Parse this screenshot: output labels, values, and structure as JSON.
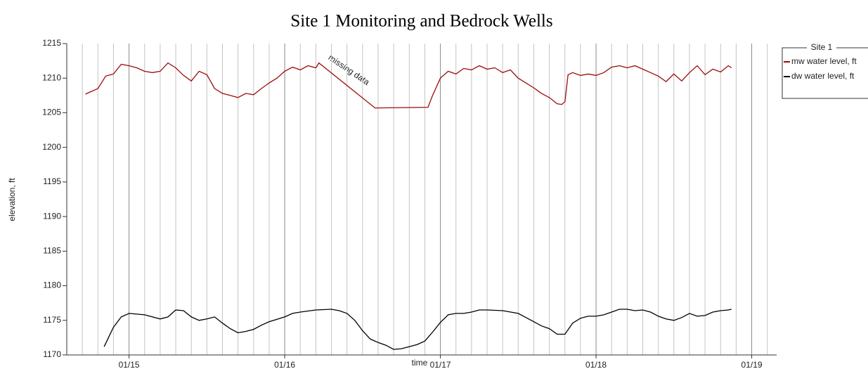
{
  "chart_data": {
    "type": "line",
    "title": "Site 1 Monitoring and Bedrock Wells",
    "xlabel": "time",
    "ylabel": "elevation, ft",
    "xlim": [
      14.6,
      19.16
    ],
    "xticks": [
      {
        "value": 15,
        "label": "01/15"
      },
      {
        "value": 16,
        "label": "01/16"
      },
      {
        "value": 17,
        "label": "01/17"
      },
      {
        "value": 18,
        "label": "01/18"
      },
      {
        "value": 19,
        "label": "01/19"
      }
    ],
    "xminorticks": [
      14.7,
      14.8,
      14.9,
      15.1,
      15.2,
      15.3,
      15.4,
      15.5,
      15.6,
      15.7,
      15.8,
      15.9,
      16.1,
      16.2,
      16.3,
      16.4,
      16.5,
      16.6,
      16.7,
      16.8,
      16.9,
      17.1,
      17.2,
      17.3,
      17.4,
      17.5,
      17.6,
      17.7,
      17.8,
      17.9,
      18.1,
      18.2,
      18.3,
      18.4,
      18.5,
      18.6,
      18.7,
      18.8,
      18.9,
      19.1
    ],
    "ylim": [
      1170,
      1215
    ],
    "yticks": [
      1170,
      1175,
      1180,
      1185,
      1190,
      1195,
      1200,
      1205,
      1210,
      1215
    ],
    "grid": true,
    "legend_title": "Site 1",
    "legend": "right",
    "annotations": [
      {
        "text": "missing data"
      }
    ],
    "series": [
      {
        "name": "mw water level, ft",
        "color": "#9b0d0d",
        "x": [
          14.72,
          14.75,
          14.8,
          14.85,
          14.9,
          14.95,
          15.0,
          15.05,
          15.1,
          15.15,
          15.2,
          15.25,
          15.3,
          15.35,
          15.4,
          15.45,
          15.5,
          15.55,
          15.6,
          15.65,
          15.7,
          15.75,
          15.8,
          15.85,
          15.9,
          15.95,
          16.0,
          16.05,
          16.1,
          16.15,
          16.2,
          16.22,
          16.58,
          16.92,
          16.95,
          17.0,
          17.05,
          17.1,
          17.15,
          17.2,
          17.25,
          17.3,
          17.35,
          17.4,
          17.45,
          17.5,
          17.55,
          17.6,
          17.65,
          17.7,
          17.75,
          17.78,
          17.8,
          17.82,
          17.85,
          17.9,
          17.95,
          18.0,
          18.05,
          18.1,
          18.15,
          18.2,
          18.25,
          18.3,
          18.35,
          18.4,
          18.45,
          18.5,
          18.55,
          18.6,
          18.65,
          18.7,
          18.75,
          18.8,
          18.85,
          18.87
        ],
        "values": [
          1207.7,
          1208,
          1208.5,
          1210.3,
          1210.6,
          1212,
          1211.8,
          1211.5,
          1211,
          1210.8,
          1211,
          1212.2,
          1211.5,
          1210.4,
          1209.6,
          1211,
          1210.5,
          1208.5,
          1207.8,
          1207.5,
          1207.2,
          1207.8,
          1207.6,
          1208.5,
          1209.3,
          1210,
          1211,
          1211.6,
          1211.2,
          1211.8,
          1211.5,
          1212.2,
          1205.7,
          1205.8,
          1207.5,
          1210,
          1211,
          1210.6,
          1211.4,
          1211.2,
          1211.8,
          1211.3,
          1211.5,
          1210.8,
          1211.2,
          1210,
          1209.3,
          1208.6,
          1207.8,
          1207.2,
          1206.3,
          1206.2,
          1206.6,
          1210.5,
          1210.8,
          1210.4,
          1210.6,
          1210.4,
          1210.8,
          1211.6,
          1211.8,
          1211.5,
          1211.8,
          1211.3,
          1210.8,
          1210.3,
          1209.5,
          1210.6,
          1209.6,
          1210.8,
          1211.8,
          1210.5,
          1211.3,
          1210.9,
          1211.8,
          1211.5
        ]
      },
      {
        "name": "dw water level, ft",
        "color": "#000000",
        "x": [
          14.84,
          14.9,
          14.95,
          15.0,
          15.1,
          15.2,
          15.25,
          15.3,
          15.35,
          15.4,
          15.45,
          15.5,
          15.55,
          15.6,
          15.65,
          15.7,
          15.75,
          15.8,
          15.85,
          15.9,
          16.0,
          16.05,
          16.1,
          16.2,
          16.3,
          16.35,
          16.4,
          16.45,
          16.5,
          16.55,
          16.6,
          16.65,
          16.7,
          16.75,
          16.8,
          16.85,
          16.9,
          16.95,
          17.0,
          17.05,
          17.1,
          17.15,
          17.2,
          17.25,
          17.3,
          17.4,
          17.5,
          17.55,
          17.6,
          17.65,
          17.7,
          17.75,
          17.8,
          17.85,
          17.9,
          17.95,
          18.0,
          18.05,
          18.1,
          18.15,
          18.2,
          18.25,
          18.3,
          18.35,
          18.4,
          18.45,
          18.5,
          18.55,
          18.6,
          18.65,
          18.7,
          18.75,
          18.8,
          18.85,
          18.87
        ],
        "values": [
          1171.2,
          1174,
          1175.5,
          1176,
          1175.8,
          1175.2,
          1175.5,
          1176.5,
          1176.4,
          1175.5,
          1175,
          1175.2,
          1175.5,
          1174.6,
          1173.8,
          1173.2,
          1173.4,
          1173.7,
          1174.3,
          1174.8,
          1175.5,
          1176,
          1176.2,
          1176.5,
          1176.6,
          1176.4,
          1176,
          1175,
          1173.5,
          1172.3,
          1171.8,
          1171.4,
          1170.8,
          1170.9,
          1171.2,
          1171.5,
          1172,
          1173.3,
          1174.7,
          1175.8,
          1176,
          1176,
          1176.2,
          1176.5,
          1176.5,
          1176.4,
          1176,
          1175.4,
          1174.8,
          1174.2,
          1173.8,
          1173,
          1173,
          1174.6,
          1175.3,
          1175.6,
          1175.6,
          1175.8,
          1176.2,
          1176.6,
          1176.6,
          1176.4,
          1176.5,
          1176.2,
          1175.6,
          1175.2,
          1175,
          1175.4,
          1176,
          1175.6,
          1175.7,
          1176.2,
          1176.4,
          1176.5,
          1176.6
        ]
      }
    ]
  }
}
